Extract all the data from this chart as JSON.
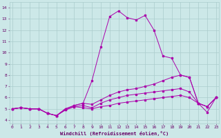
{
  "title": "",
  "xlabel": "Windchill (Refroidissement éolien,°C)",
  "ylabel": "",
  "bg_color": "#cce8e8",
  "line_color": "#aa00aa",
  "grid_color": "#aacccc",
  "x_ticks": [
    0,
    1,
    2,
    3,
    4,
    5,
    6,
    7,
    8,
    9,
    10,
    11,
    12,
    13,
    14,
    15,
    16,
    17,
    18,
    19,
    20,
    21,
    22,
    23
  ],
  "y_ticks": [
    4,
    5,
    6,
    7,
    8,
    9,
    10,
    11,
    12,
    13,
    14
  ],
  "ylim": [
    3.7,
    14.5
  ],
  "xlim": [
    -0.3,
    23.3
  ],
  "series": [
    [
      5.0,
      5.1,
      5.0,
      5.0,
      4.6,
      4.4,
      4.9,
      5.2,
      5.1,
      5.0,
      5.2,
      5.3,
      5.5,
      5.6,
      5.7,
      5.8,
      5.9,
      6.0,
      6.1,
      6.2,
      6.0,
      5.5,
      5.2,
      6.0
    ],
    [
      5.0,
      5.1,
      5.0,
      5.0,
      4.6,
      4.4,
      4.9,
      5.2,
      5.3,
      5.1,
      5.5,
      5.8,
      6.0,
      6.2,
      6.3,
      6.4,
      6.5,
      6.6,
      6.7,
      6.8,
      6.5,
      5.5,
      5.2,
      6.0
    ],
    [
      5.0,
      5.1,
      5.0,
      5.0,
      4.6,
      4.4,
      5.0,
      5.3,
      5.5,
      5.4,
      5.8,
      6.2,
      6.5,
      6.7,
      6.8,
      7.0,
      7.2,
      7.5,
      7.8,
      8.0,
      7.8,
      5.5,
      5.2,
      6.0
    ],
    [
      5.0,
      5.1,
      5.0,
      5.0,
      4.6,
      4.4,
      5.0,
      5.3,
      5.5,
      7.5,
      10.5,
      13.2,
      13.7,
      13.1,
      12.9,
      13.3,
      12.0,
      9.7,
      9.5,
      8.0,
      7.8,
      5.5,
      4.7,
      6.0
    ]
  ]
}
